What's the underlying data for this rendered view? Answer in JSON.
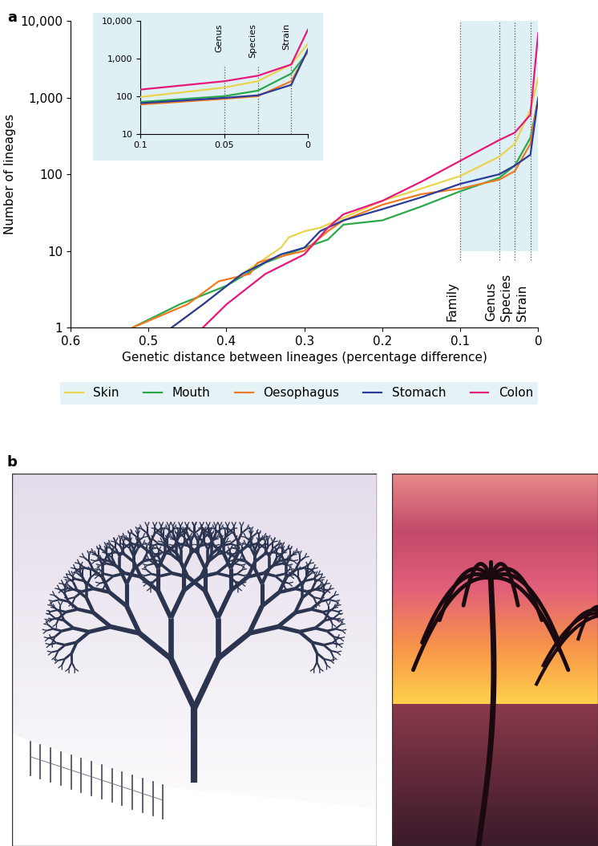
{
  "panel_labels": [
    "a",
    "b"
  ],
  "chart_data": [
    {
      "type": "line",
      "x_label": "Genetic distance between lineages (percentage difference)",
      "y_label": "Number of lineages",
      "log": "y",
      "legend": "lower center",
      "xlim": [
        0.6,
        0
      ],
      "ylim": [
        1,
        10000
      ],
      "xticks": [
        0.6,
        0.5,
        0.4,
        0.3,
        0.2,
        0.1,
        0
      ],
      "yticks": [
        1,
        10,
        100,
        {
          "value": 1000,
          "label": "1,000"
        },
        {
          "value": 10000,
          "label": "10,000"
        }
      ],
      "annotations": [
        {
          "text": "Family",
          "x": 0.1
        },
        {
          "text": "Genus",
          "x": 0.05
        },
        {
          "text": "Species",
          "x": 0.03
        },
        {
          "text": "Strain",
          "x": 0.01
        }
      ],
      "series": [
        {
          "name": "Skin",
          "color": "#e8d44d",
          "x": [
            0.47,
            0.43,
            0.38,
            0.33,
            0.32,
            0.3,
            0.28,
            0.25,
            0.2,
            0.15,
            0.1,
            0.05,
            0.03,
            0.01,
            0.0
          ],
          "values": [
            1,
            2,
            5,
            11,
            15,
            18,
            20,
            27,
            45,
            65,
            95,
            170,
            250,
            700,
            1800
          ]
        },
        {
          "name": "Mouth",
          "color": "#2aa84a",
          "x": [
            0.52,
            0.46,
            0.4,
            0.35,
            0.3,
            0.27,
            0.25,
            0.2,
            0.15,
            0.1,
            0.05,
            0.03,
            0.01,
            0.0
          ],
          "values": [
            1,
            2,
            3.5,
            7,
            11,
            14,
            22,
            25,
            38,
            60,
            90,
            130,
            300,
            950
          ]
        },
        {
          "name": "Oesophagus",
          "color": "#f07a22",
          "x": [
            0.52,
            0.45,
            0.41,
            0.37,
            0.36,
            0.34,
            0.3,
            0.27,
            0.25,
            0.2,
            0.15,
            0.1,
            0.05,
            0.03,
            0.01,
            0.0
          ],
          "values": [
            1,
            2,
            4,
            5,
            7,
            8,
            10,
            18,
            25,
            40,
            55,
            65,
            85,
            110,
            250,
            1000
          ]
        },
        {
          "name": "Stomach",
          "color": "#2b3b9a",
          "x": [
            0.47,
            0.43,
            0.38,
            0.33,
            0.3,
            0.28,
            0.25,
            0.2,
            0.15,
            0.1,
            0.05,
            0.03,
            0.01,
            0.0
          ],
          "values": [
            1,
            2,
            5,
            9,
            11,
            18,
            25,
            35,
            50,
            75,
            100,
            130,
            180,
            1000
          ]
        },
        {
          "name": "Colon",
          "color": "#e6197a",
          "x": [
            0.43,
            0.4,
            0.35,
            0.3,
            0.27,
            0.25,
            0.2,
            0.15,
            0.1,
            0.05,
            0.03,
            0.01,
            0.0
          ],
          "values": [
            1,
            2,
            5,
            9,
            20,
            30,
            45,
            80,
            150,
            280,
            350,
            600,
            7000
          ]
        }
      ]
    },
    {
      "type": "line",
      "log": "y",
      "xlim": [
        0.1,
        0
      ],
      "ylim": [
        10,
        10000
      ],
      "xticks": [
        0.1,
        0.05,
        0
      ],
      "yticks": [
        10,
        100,
        {
          "value": 1000,
          "label": "1,000"
        },
        {
          "value": 10000,
          "label": "10,000"
        }
      ],
      "annotations": [
        {
          "text": "Genus",
          "x": 0.05
        },
        {
          "text": "Species",
          "x": 0.03
        },
        {
          "text": "Strain",
          "x": 0.01
        }
      ],
      "series": [
        {
          "name": "Skin",
          "color": "#e8d44d",
          "x": [
            0.1,
            0.05,
            0.03,
            0.01,
            0.0
          ],
          "values": [
            95,
            170,
            250,
            700,
            2500
          ]
        },
        {
          "name": "Mouth",
          "color": "#2aa84a",
          "x": [
            0.1,
            0.05,
            0.03,
            0.01,
            0.0
          ],
          "values": [
            70,
            100,
            140,
            400,
            1500
          ]
        },
        {
          "name": "Oesophagus",
          "color": "#f07a22",
          "x": [
            0.1,
            0.05,
            0.03,
            0.01,
            0.0
          ],
          "values": [
            60,
            85,
            100,
            250,
            1600
          ]
        },
        {
          "name": "Stomach",
          "color": "#2b3b9a",
          "x": [
            0.1,
            0.05,
            0.03,
            0.01,
            0.0
          ],
          "values": [
            65,
            90,
            105,
            200,
            1800
          ]
        },
        {
          "name": "Colon",
          "color": "#e6197a",
          "x": [
            0.1,
            0.05,
            0.03,
            0.01,
            0.0
          ],
          "values": [
            150,
            250,
            350,
            700,
            6000
          ]
        }
      ]
    }
  ]
}
